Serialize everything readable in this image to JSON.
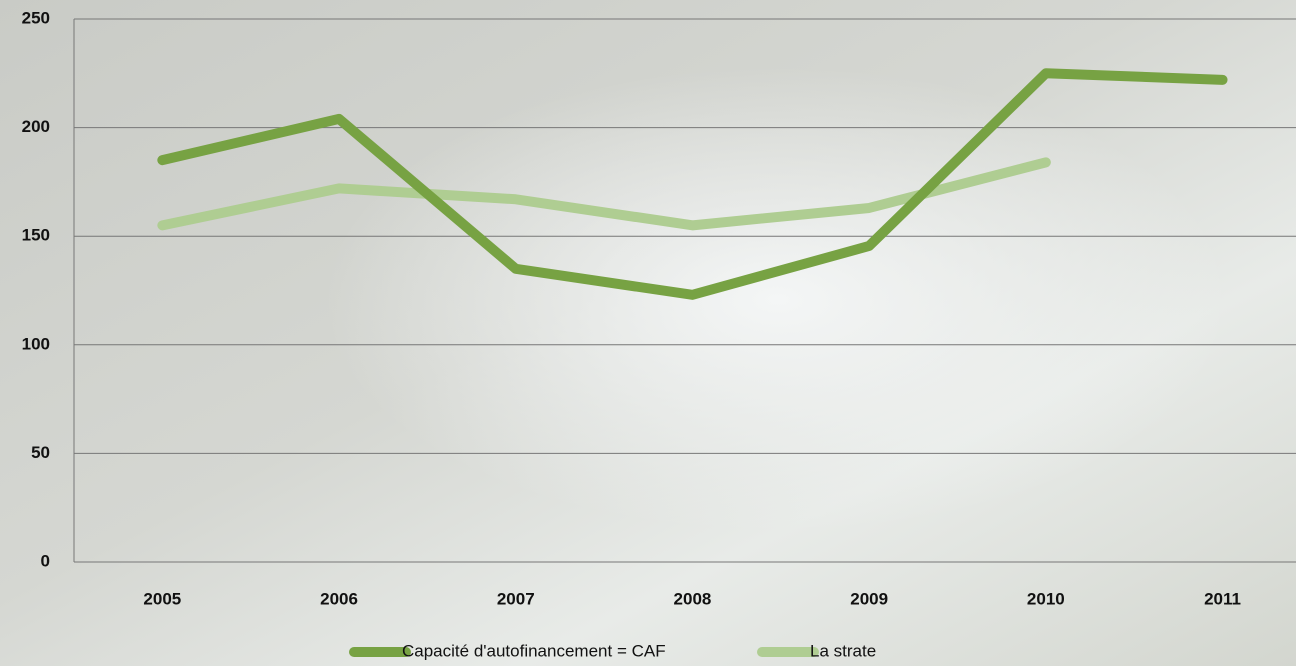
{
  "chart_data": {
    "type": "line",
    "categories": [
      "2005",
      "2006",
      "2007",
      "2008",
      "2009",
      "2010",
      "2011"
    ],
    "series": [
      {
        "name": "Capacité d'autofinancement = CAF",
        "color": "#77a243",
        "values": [
          185,
          204,
          135,
          123,
          145.5,
          225,
          222
        ]
      },
      {
        "name": "La strate",
        "color": "#afcd92",
        "values": [
          155,
          172,
          167,
          155,
          163,
          184,
          null
        ]
      }
    ],
    "ylim": [
      0,
      250
    ],
    "yticks": [
      0,
      50,
      100,
      150,
      200,
      250
    ],
    "grid": true,
    "legend": "bottom"
  }
}
